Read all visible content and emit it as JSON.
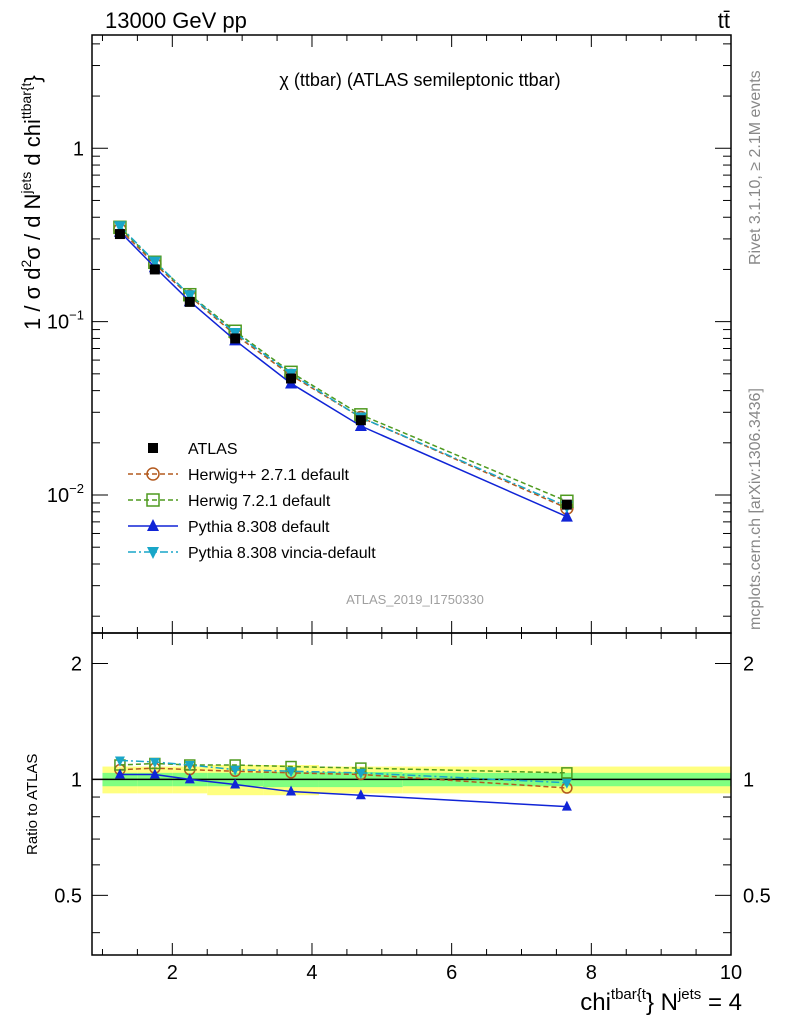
{
  "header": {
    "energy_label": "13000 GeV pp",
    "process_label": "tt̄"
  },
  "plot_title": "χ (ttbar) (ATLAS semileptonic ttbar)",
  "analysis_id": "ATLAS_2019_I1750330",
  "side_labels": {
    "rivet": "Rivet 3.1.10, ≥ 2.1M events",
    "mcplots": "mcplots.cern.ch [arXiv:1306.3436]"
  },
  "axis_labels": {
    "main_y": {
      "prefix": "1 / σ d",
      "sup1": "2",
      "mid": "σ / d N",
      "sup2": "jets",
      "suffix": " d chi",
      "sup3": "ttbar{t",
      "close": "}"
    },
    "ratio_y": "Ratio to ATLAS",
    "x": {
      "prefix": "chi",
      "sup1": "tbar{t",
      "mid": "} N",
      "sup2": "jets",
      "suffix": " = 4"
    }
  },
  "colors": {
    "ATLAS": "#000000",
    "Herwig++ 2.7.1 default": "#b35a1f",
    "Herwig 7.2.1 default": "#4e9a1f",
    "Pythia 8.308 default": "#1024d6",
    "Pythia 8.308 vincia-default": "#19a6c8",
    "band_inner": "#80ff80",
    "band_outer": "#ffff80"
  },
  "chart_data": {
    "type": "line",
    "title": "χ (ttbar) (ATLAS semileptonic ttbar)",
    "xlabel": "chi^{tbar{t}} N^{jets} = 4",
    "ylabel": "1 / σ d^2σ / d N^{jets} d chi^{ttbar{t}}",
    "xlim": [
      0.85,
      10
    ],
    "ylim": [
      0.0016,
      4.5
    ],
    "ylog": true,
    "ratio_ylim": [
      0.35,
      2.4
    ],
    "ratio_ylabel": "Ratio to ATLAS",
    "x_ticks": [
      2,
      4,
      6,
      8,
      10
    ],
    "y_ticks": [
      {
        "value": 1,
        "label": "1"
      },
      {
        "value": 0.1,
        "label": "10",
        "sup": "−1"
      },
      {
        "value": 0.01,
        "label": "10",
        "sup": "−2"
      }
    ],
    "ratio_ticks": [
      {
        "value": 2,
        "label": "2"
      },
      {
        "value": 1,
        "label": "1"
      },
      {
        "value": 0.5,
        "label": "0.5"
      }
    ],
    "bins": [
      {
        "lo": 1.0,
        "hi": 1.5
      },
      {
        "lo": 1.5,
        "hi": 2.0
      },
      {
        "lo": 2.0,
        "hi": 2.5
      },
      {
        "lo": 2.5,
        "hi": 3.3
      },
      {
        "lo": 3.3,
        "hi": 4.1
      },
      {
        "lo": 4.1,
        "hi": 5.3
      },
      {
        "lo": 5.3,
        "hi": 10.0
      }
    ],
    "x": [
      1.25,
      1.75,
      2.25,
      2.9,
      3.7,
      4.7,
      7.65
    ],
    "data": {
      "name": "ATLAS",
      "values": [
        0.32,
        0.2,
        0.13,
        0.08,
        0.047,
        0.027,
        0.0088
      ],
      "band_inner": [
        0.04,
        0.04,
        0.04,
        0.04,
        0.045,
        0.045,
        0.04
      ],
      "band_outer": [
        0.08,
        0.08,
        0.08,
        0.09,
        0.09,
        0.08,
        0.08
      ]
    },
    "series": [
      {
        "name": "Herwig++ 2.7.1 default",
        "style": "dashed",
        "marker": "open-circle",
        "values": [
          0.34,
          0.215,
          0.14,
          0.084,
          0.049,
          0.028,
          0.0084
        ],
        "ratio": [
          1.06,
          1.07,
          1.06,
          1.05,
          1.04,
          1.03,
          0.95
        ]
      },
      {
        "name": "Herwig 7.2.1 default",
        "style": "dashed",
        "marker": "open-square",
        "values": [
          0.35,
          0.22,
          0.143,
          0.088,
          0.051,
          0.029,
          0.0092
        ],
        "ratio": [
          1.09,
          1.1,
          1.09,
          1.09,
          1.08,
          1.07,
          1.04
        ]
      },
      {
        "name": "Pythia 8.308 default",
        "style": "solid",
        "marker": "filled-triangle-up",
        "values": [
          0.33,
          0.206,
          0.131,
          0.078,
          0.044,
          0.025,
          0.0075
        ],
        "ratio": [
          1.03,
          1.03,
          1.0,
          0.97,
          0.93,
          0.91,
          0.85
        ]
      },
      {
        "name": "Pythia 8.308 vincia-default",
        "style": "dashdot",
        "marker": "filled-triangle-down",
        "values": [
          0.355,
          0.222,
          0.142,
          0.086,
          0.05,
          0.028,
          0.0086
        ],
        "ratio": [
          1.12,
          1.11,
          1.09,
          1.06,
          1.05,
          1.04,
          0.98
        ]
      }
    ]
  }
}
